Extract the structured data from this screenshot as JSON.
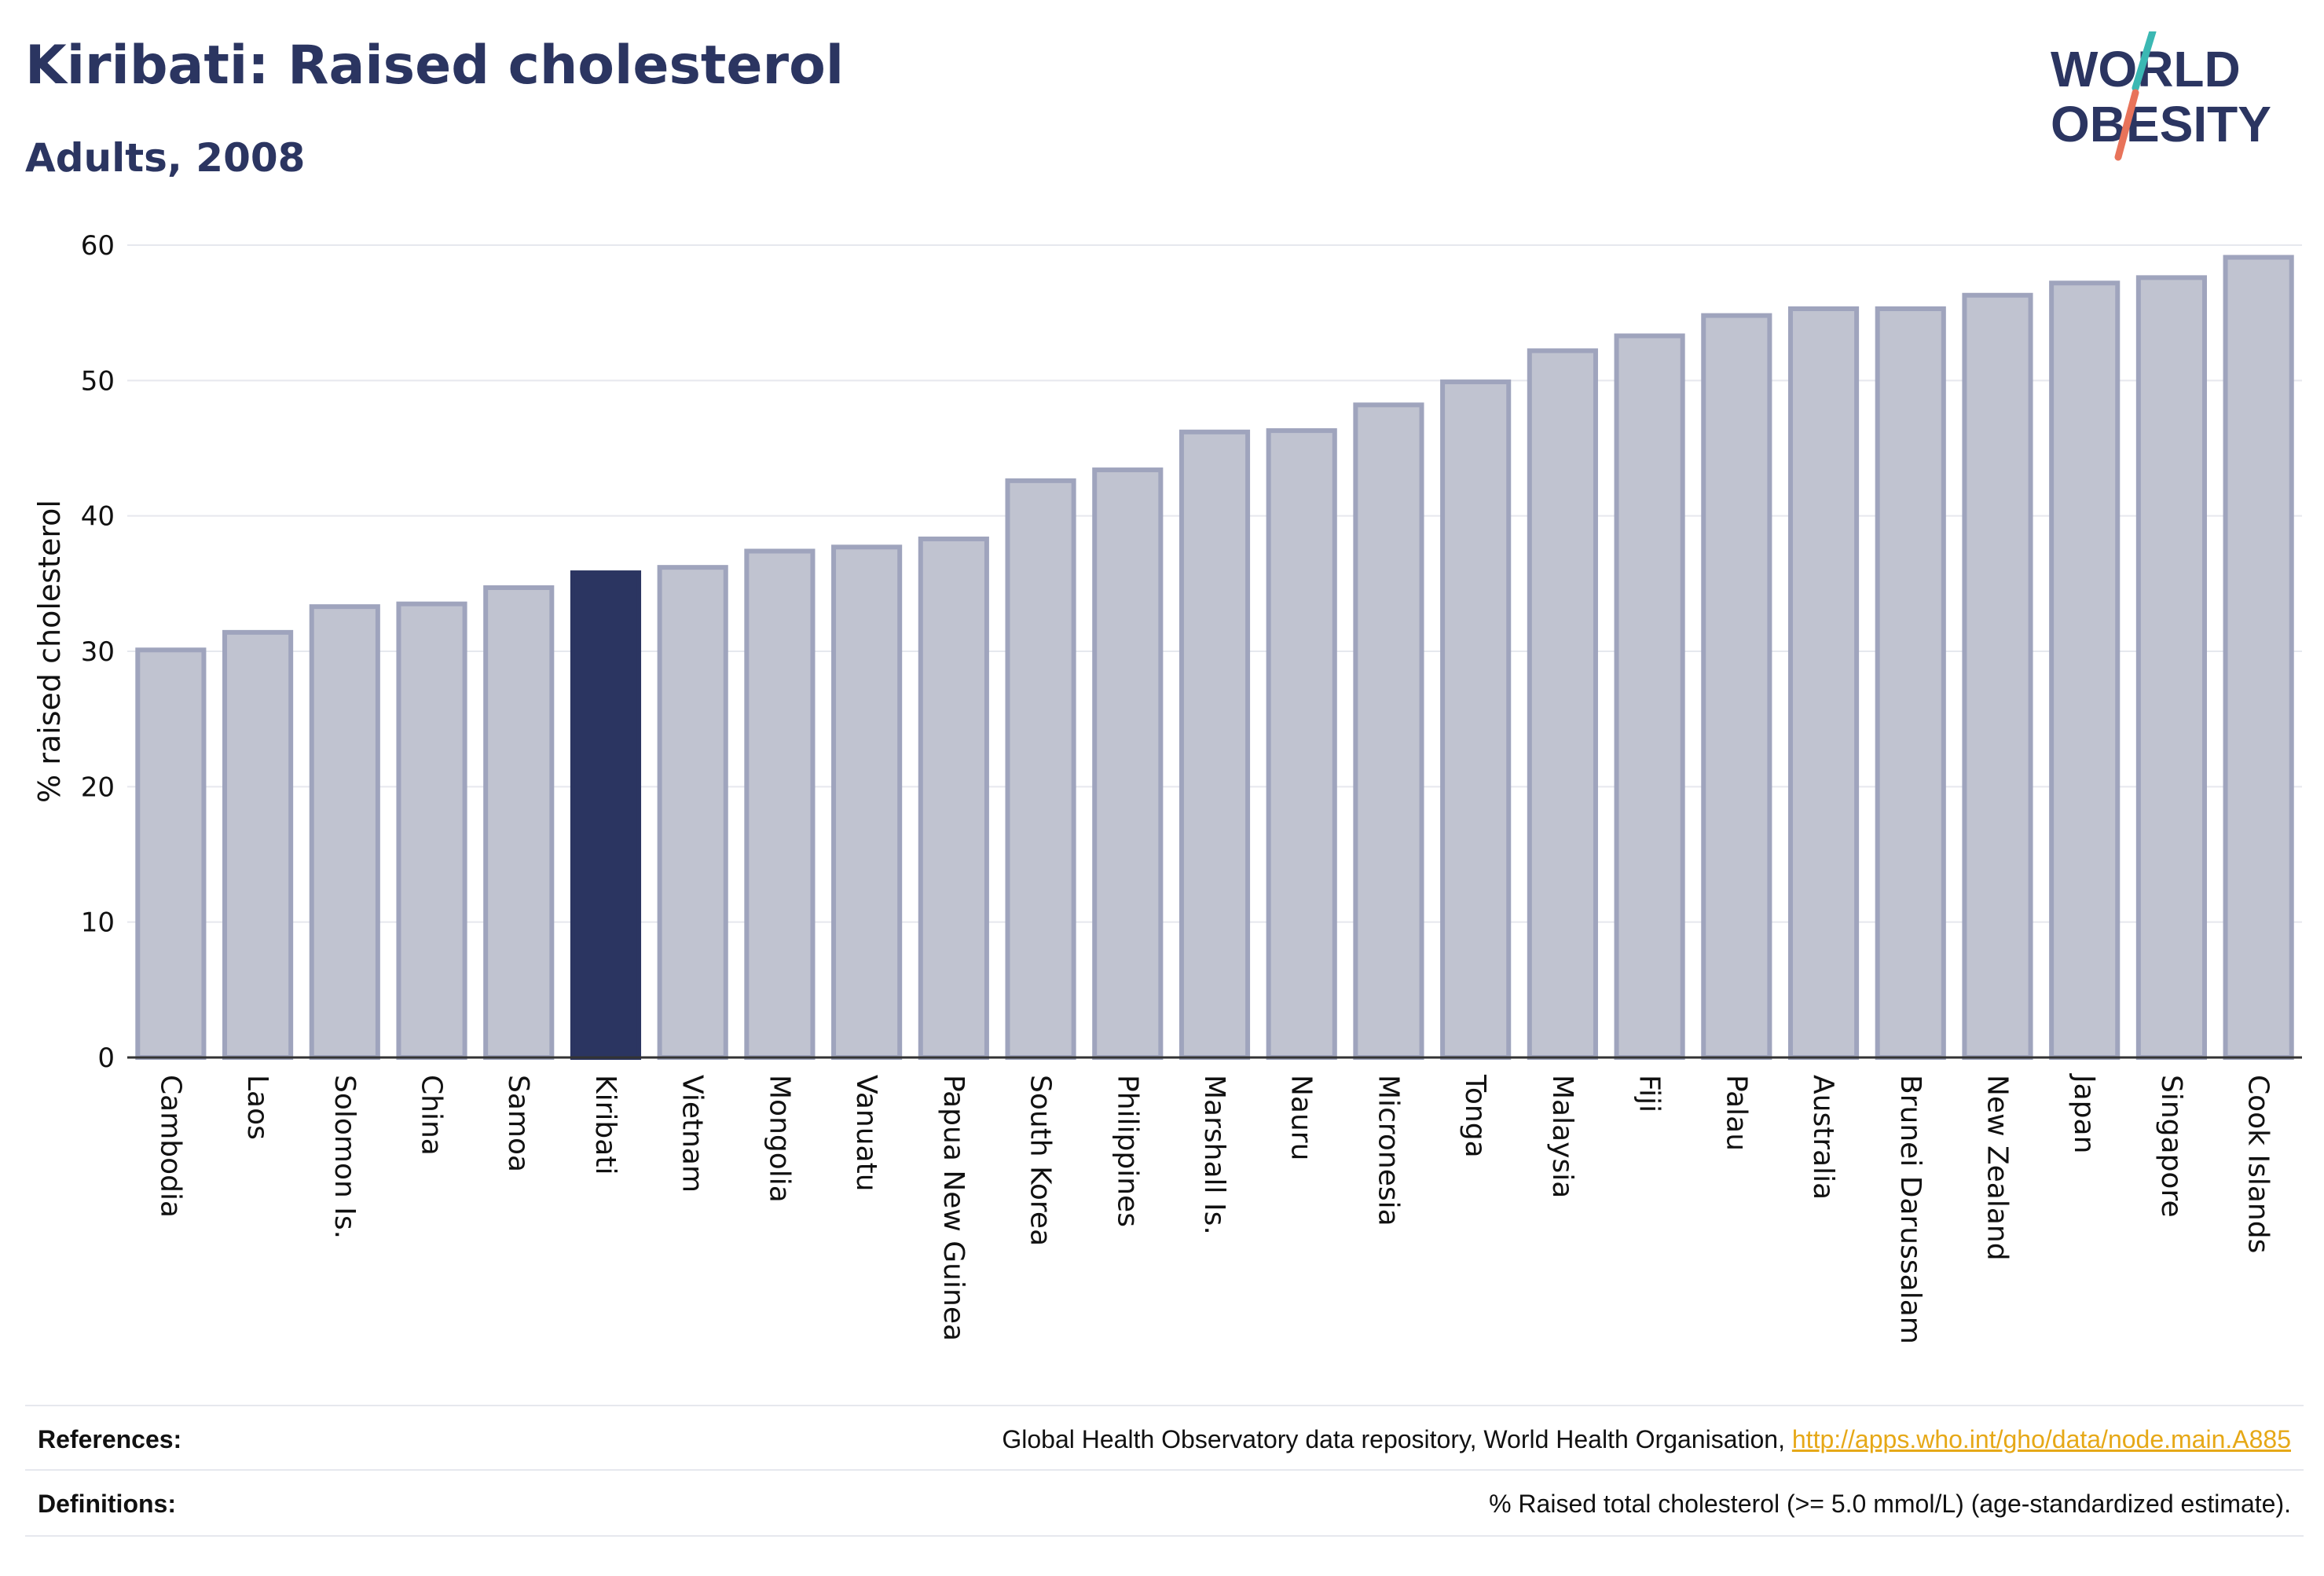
{
  "header": {
    "title": "Kiribati: Raised cholesterol",
    "subtitle": "Adults, 2008"
  },
  "logo": {
    "line1": "WORLD",
    "line2": "OBESITY",
    "colors": {
      "text": "#2b3561",
      "slash_teal": "#3bb8b3",
      "slash_coral": "#e8735a"
    }
  },
  "colors": {
    "bar_fill": "#c0c3d0",
    "bar_stroke": "#9fa4bd",
    "highlight_fill": "#2b3561",
    "grid": "#e6e8ee",
    "axis": "#333333"
  },
  "chart_data": {
    "type": "bar",
    "title": "Kiribati: Raised cholesterol",
    "subtitle": "Adults, 2008",
    "ylabel": "% raised cholesterol",
    "xlabel": "",
    "ylim": [
      0,
      60
    ],
    "yticks": [
      0,
      10,
      20,
      30,
      40,
      50,
      60
    ],
    "grid": true,
    "highlight": "Kiribati",
    "categories": [
      "Cambodia",
      "Laos",
      "Solomon Is.",
      "China",
      "Samoa",
      "Kiribati",
      "Vietnam",
      "Mongolia",
      "Vanuatu",
      "Papua New Guinea",
      "South Korea",
      "Philippines",
      "Marshall Is.",
      "Nauru",
      "Micronesia",
      "Tonga",
      "Malaysia",
      "Fiji",
      "Palau",
      "Australia",
      "Brunei Darussalam",
      "New Zealand",
      "Japan",
      "Singapore",
      "Cook Islands"
    ],
    "values": [
      30.1,
      31.4,
      33.3,
      33.5,
      34.7,
      35.8,
      36.2,
      37.4,
      37.7,
      38.3,
      42.6,
      43.4,
      46.2,
      46.3,
      48.2,
      49.9,
      52.2,
      53.3,
      54.8,
      55.3,
      55.3,
      56.3,
      57.2,
      57.6,
      59.1
    ]
  },
  "footer": {
    "references_label": "References:",
    "references_text": "Global Health Observatory data repository, World Health Organisation, ",
    "references_link": "http://apps.who.int/gho/data/node.main.A885",
    "definitions_label": "Definitions:",
    "definitions_text": "% Raised total cholesterol (>= 5.0 mmol/L) (age-standardized estimate)."
  }
}
